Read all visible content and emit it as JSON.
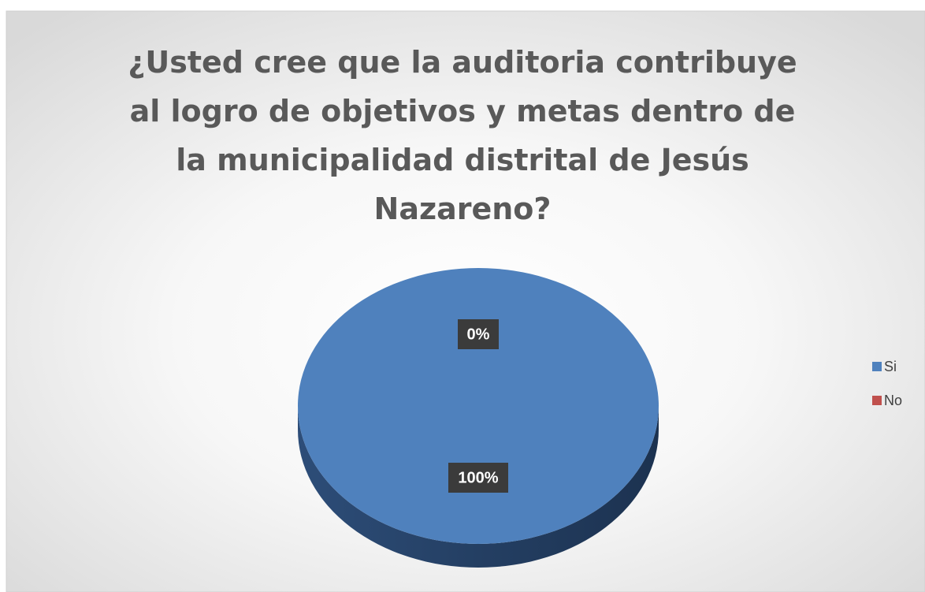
{
  "chart_data": {
    "type": "pie",
    "title": "¿Usted cree que la auditoria contribuye al logro de objetivos y metas dentro de la municipalidad distrital de Jesús Nazareno?",
    "categories": [
      "Si",
      "No"
    ],
    "values": [
      100,
      0
    ],
    "value_labels": [
      "100%",
      "0%"
    ],
    "colors": [
      "#4f81bd",
      "#c0504d"
    ],
    "legend": "right"
  }
}
